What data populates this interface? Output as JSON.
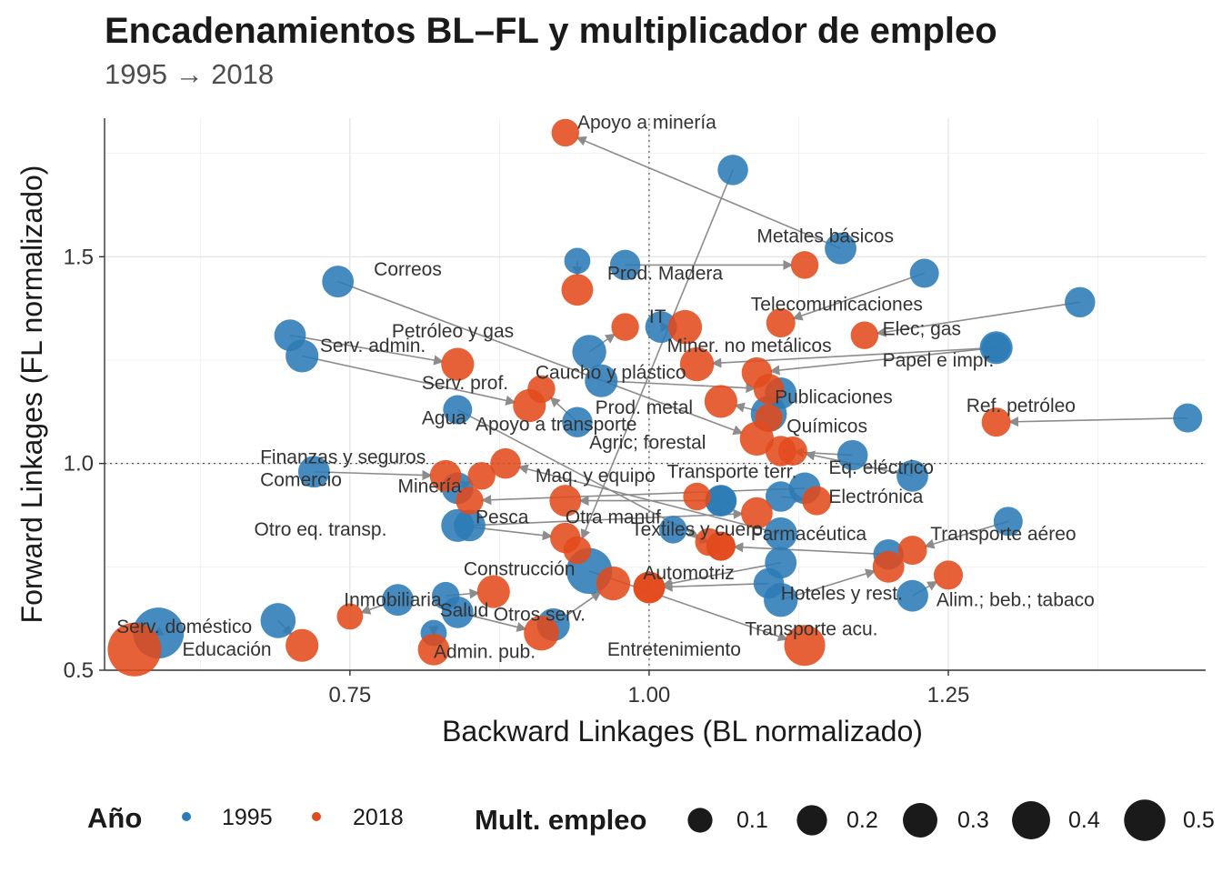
{
  "title": "Encadenamientos BL–FL y multiplicador de empleo",
  "subtitle": "1995 → 2018",
  "chart_data": {
    "type": "scatter",
    "title": "Encadenamientos BL–FL y multiplicador de empleo",
    "subtitle": "1995 → 2018",
    "xlabel": "Backward Linkages (BL normalizado)",
    "ylabel": "Forward Linkages (FL normalizado)",
    "xlim": [
      0.545,
      1.465
    ],
    "ylim": [
      0.5,
      1.835
    ],
    "x_ticks": [
      0.75,
      1.0,
      1.25
    ],
    "x_tick_labels": [
      "0.75",
      "1.00",
      "1.25"
    ],
    "y_ticks": [
      0.5,
      1.0,
      1.5
    ],
    "y_tick_labels": [
      "0.5",
      "1.0",
      "1.5"
    ],
    "reference_lines": {
      "x": 1.0,
      "y": 1.0
    },
    "grid": true,
    "legend_position": "bottom",
    "colors": {
      "1995": "#2c7bb6",
      "2018": "#e34a1d"
    },
    "legend": {
      "color_title": "Año",
      "color_entries": [
        "1995",
        "2018"
      ],
      "size_title": "Mult. empleo",
      "size_entries": [
        0.1,
        0.2,
        0.3,
        0.4,
        0.5
      ],
      "size_labels": [
        "0.1",
        "0.2",
        "0.3",
        "0.4",
        "0.5"
      ]
    },
    "series": [
      {
        "name": "1995",
        "points": [
          {
            "sector": "Apoyo a minería",
            "x": 1.16,
            "y": 1.52,
            "size": 0.1
          },
          {
            "sector": "Correos",
            "x": 0.94,
            "y": 1.49,
            "size": 0.06
          },
          {
            "sector": "Metales básicos",
            "x": 0.98,
            "y": 1.48,
            "size": 0.09
          },
          {
            "sector": "Prod. Madera",
            "x": 1.01,
            "y": 1.33,
            "size": 0.1
          },
          {
            "sector": "Telecomunicaciones",
            "x": 1.23,
            "y": 1.46,
            "size": 0.08
          },
          {
            "sector": "IT",
            "x": 0.95,
            "y": 1.27,
            "size": 0.12
          },
          {
            "sector": "Elec; gas",
            "x": 1.36,
            "y": 1.39,
            "size": 0.09
          },
          {
            "sector": "Petróleo y gas",
            "x": 1.07,
            "y": 1.71,
            "size": 0.09
          },
          {
            "sector": "Serv. admin.",
            "x": 0.7,
            "y": 1.31,
            "size": 0.1
          },
          {
            "sector": "Miner. no metálicos",
            "x": 1.29,
            "y": 1.28,
            "size": 0.11
          },
          {
            "sector": "Papel e impr.",
            "x": 1.29,
            "y": 1.28,
            "size": 0.08
          },
          {
            "sector": "Serv. prof.",
            "x": 0.71,
            "y": 1.26,
            "size": 0.11
          },
          {
            "sector": "Caucho y plástico",
            "x": 0.96,
            "y": 1.2,
            "size": 0.11
          },
          {
            "sector": "Publicaciones",
            "x": 1.11,
            "y": 1.17,
            "size": 0.1
          },
          {
            "sector": "Ref. petróleo",
            "x": 1.45,
            "y": 1.11,
            "size": 0.08
          },
          {
            "sector": "Prod. metal",
            "x": 1.1,
            "y": 1.12,
            "size": 0.14
          },
          {
            "sector": "Agua",
            "x": 0.84,
            "y": 1.13,
            "size": 0.08
          },
          {
            "sector": "Apoyo a transporte",
            "x": 0.94,
            "y": 1.1,
            "size": 0.09
          },
          {
            "sector": "Agric; forestal",
            "x": 0.74,
            "y": 1.44,
            "size": 0.1
          },
          {
            "sector": "Químicos",
            "x": 1.17,
            "y": 1.02,
            "size": 0.09
          },
          {
            "sector": "Finanzas y seguros",
            "x": 0.84,
            "y": 0.94,
            "size": 0.1
          },
          {
            "sector": "Comercio",
            "x": 0.72,
            "y": 0.98,
            "size": 0.1
          },
          {
            "sector": "Eq. eléctrico",
            "x": 1.22,
            "y": 0.97,
            "size": 0.1
          },
          {
            "sector": "Minería",
            "x": 1.13,
            "y": 0.94,
            "size": 0.1
          },
          {
            "sector": "Maq. y equipo",
            "x": 1.06,
            "y": 0.91,
            "size": 0.1
          },
          {
            "sector": "Transporte terr.",
            "x": 1.06,
            "y": 0.91,
            "size": 0.09
          },
          {
            "sector": "Electrónica",
            "x": 1.11,
            "y": 0.92,
            "size": 0.09
          },
          {
            "sector": "Pesca",
            "x": 0.85,
            "y": 0.85,
            "size": 0.1
          },
          {
            "sector": "Otra manuf.",
            "x": 1.11,
            "y": 0.83,
            "size": 0.11
          },
          {
            "sector": "Otro eq. transp.",
            "x": 0.84,
            "y": 0.85,
            "size": 0.11
          },
          {
            "sector": "Textiles y cuero",
            "x": 1.02,
            "y": 0.84,
            "size": 0.07
          },
          {
            "sector": "Farmacéutica",
            "x": 1.2,
            "y": 0.78,
            "size": 0.09
          },
          {
            "sector": "Transporte aéreo",
            "x": 1.3,
            "y": 0.86,
            "size": 0.08
          },
          {
            "sector": "Construcción",
            "x": 0.95,
            "y": 0.74,
            "size": 0.25
          },
          {
            "sector": "Automotriz",
            "x": 1.11,
            "y": 0.76,
            "size": 0.1
          },
          {
            "sector": "Hoteles y rest.",
            "x": 1.11,
            "y": 0.67,
            "size": 0.12
          },
          {
            "sector": "Alim.; beb.; tabaco",
            "x": 1.22,
            "y": 0.68,
            "size": 0.1
          },
          {
            "sector": "Inmobiliaria",
            "x": 0.79,
            "y": 0.67,
            "size": 0.1
          },
          {
            "sector": "Salud",
            "x": 0.83,
            "y": 0.68,
            "size": 0.07
          },
          {
            "sector": "Otros serv.",
            "x": 0.92,
            "y": 0.61,
            "size": 0.11
          },
          {
            "sector": "Entretenimiento",
            "x": 1.1,
            "y": 0.71,
            "size": 0.09
          },
          {
            "sector": "Transporte acu.",
            "x": 0.84,
            "y": 0.64,
            "size": 0.1
          },
          {
            "sector": "Serv. doméstico",
            "x": 0.59,
            "y": 0.59,
            "size": 0.32
          },
          {
            "sector": "Educación",
            "x": 0.69,
            "y": 0.62,
            "size": 0.13
          },
          {
            "sector": "Admin. pub.",
            "x": 0.82,
            "y": 0.59,
            "size": 0.06
          }
        ]
      },
      {
        "name": "2018",
        "points": [
          {
            "sector": "Apoyo a minería",
            "x": 0.93,
            "y": 1.8,
            "size": 0.07
          },
          {
            "sector": "Correos",
            "x": 0.94,
            "y": 1.42,
            "size": 0.1
          },
          {
            "sector": "Metales básicos",
            "x": 1.13,
            "y": 1.48,
            "size": 0.07
          },
          {
            "sector": "Prod. Madera",
            "x": 1.03,
            "y": 1.33,
            "size": 0.12
          },
          {
            "sector": "Telecomunicaciones",
            "x": 1.11,
            "y": 1.34,
            "size": 0.08
          },
          {
            "sector": "IT",
            "x": 0.98,
            "y": 1.33,
            "size": 0.07
          },
          {
            "sector": "Elec; gas",
            "x": 1.18,
            "y": 1.31,
            "size": 0.07
          },
          {
            "sector": "Petróleo y gas",
            "x": 0.94,
            "y": 0.79,
            "size": 0.07
          },
          {
            "sector": "Serv. admin.",
            "x": 0.84,
            "y": 1.24,
            "size": 0.11
          },
          {
            "sector": "Miner. no metálicos",
            "x": 1.04,
            "y": 1.24,
            "size": 0.12
          },
          {
            "sector": "Papel e impr.",
            "x": 1.09,
            "y": 1.22,
            "size": 0.09
          },
          {
            "sector": "Serv. prof.",
            "x": 0.9,
            "y": 1.14,
            "size": 0.11
          },
          {
            "sector": "Caucho y plástico",
            "x": 1.1,
            "y": 1.18,
            "size": 0.09
          },
          {
            "sector": "Publicaciones",
            "x": 1.1,
            "y": 1.11,
            "size": 0.07
          },
          {
            "sector": "Ref. petróleo",
            "x": 1.29,
            "y": 1.1,
            "size": 0.08
          },
          {
            "sector": "Prod. metal",
            "x": 1.06,
            "y": 1.15,
            "size": 0.11
          },
          {
            "sector": "Agua",
            "x": 1.05,
            "y": 0.81,
            "size": 0.07
          },
          {
            "sector": "Apoyo a transporte",
            "x": 0.91,
            "y": 1.18,
            "size": 0.07
          },
          {
            "sector": "Agric; forestal",
            "x": 1.09,
            "y": 1.06,
            "size": 0.12
          },
          {
            "sector": "Químicos",
            "x": 1.11,
            "y": 1.03,
            "size": 0.09
          },
          {
            "sector": "Finanzas y seguros",
            "x": 0.86,
            "y": 0.97,
            "size": 0.07
          },
          {
            "sector": "Comercio",
            "x": 0.83,
            "y": 0.97,
            "size": 0.1
          },
          {
            "sector": "Eq. eléctrico",
            "x": 1.12,
            "y": 1.03,
            "size": 0.08
          },
          {
            "sector": "Minería",
            "x": 0.85,
            "y": 0.91,
            "size": 0.07
          },
          {
            "sector": "Maq. y equipo",
            "x": 0.93,
            "y": 0.91,
            "size": 0.1
          },
          {
            "sector": "Transporte terr.",
            "x": 1.04,
            "y": 0.92,
            "size": 0.07
          },
          {
            "sector": "Electrónica",
            "x": 1.14,
            "y": 0.91,
            "size": 0.08
          },
          {
            "sector": "Pesca",
            "x": 1.09,
            "y": 0.88,
            "size": 0.1
          },
          {
            "sector": "Otra manuf.",
            "x": 0.88,
            "y": 1.0,
            "size": 0.09
          },
          {
            "sector": "Otro eq. transp.",
            "x": 0.93,
            "y": 0.82,
            "size": 0.09
          },
          {
            "sector": "Textiles y cuero",
            "x": 1.06,
            "y": 0.8,
            "size": 0.08
          },
          {
            "sector": "Farmacéutica",
            "x": 1.06,
            "y": 0.8,
            "size": 0.08
          },
          {
            "sector": "Transporte aéreo",
            "x": 1.22,
            "y": 0.79,
            "size": 0.08
          },
          {
            "sector": "Construcción",
            "x": 1.13,
            "y": 0.56,
            "size": 0.19
          },
          {
            "sector": "Automotriz",
            "x": 1.0,
            "y": 0.7,
            "size": 0.1
          },
          {
            "sector": "Hoteles y rest.",
            "x": 1.2,
            "y": 0.75,
            "size": 0.1
          },
          {
            "sector": "Alim.; beb.; tabaco",
            "x": 1.25,
            "y": 0.73,
            "size": 0.08
          },
          {
            "sector": "Inmobiliaria",
            "x": 0.75,
            "y": 0.63,
            "size": 0.06
          },
          {
            "sector": "Salud",
            "x": 0.87,
            "y": 0.69,
            "size": 0.11
          },
          {
            "sector": "Otros serv.",
            "x": 0.97,
            "y": 0.71,
            "size": 0.12
          },
          {
            "sector": "Entretenimiento",
            "x": 1.0,
            "y": 0.7,
            "size": 0.1
          },
          {
            "sector": "Transporte acu.",
            "x": 0.91,
            "y": 0.59,
            "size": 0.13
          },
          {
            "sector": "Serv. doméstico",
            "x": 0.57,
            "y": 0.55,
            "size": 0.36
          },
          {
            "sector": "Educación",
            "x": 0.71,
            "y": 0.56,
            "size": 0.11
          },
          {
            "sector": "Admin. pub.",
            "x": 0.82,
            "y": 0.55,
            "size": 0.1
          }
        ]
      }
    ],
    "labels": [
      {
        "text": "Apoyo a minería",
        "x": 0.94,
        "y": 1.81
      },
      {
        "text": "Metales básicos",
        "x": 1.09,
        "y": 1.535
      },
      {
        "text": "Correos",
        "x": 0.77,
        "y": 1.455
      },
      {
        "text": "Prod. Madera",
        "x": 0.965,
        "y": 1.445
      },
      {
        "text": "Telecomunicaciones",
        "x": 1.085,
        "y": 1.37
      },
      {
        "text": "IT",
        "x": 1.0,
        "y": 1.34
      },
      {
        "text": "Elec; gas",
        "x": 1.195,
        "y": 1.31
      },
      {
        "text": "Petróleo y gas",
        "x": 0.785,
        "y": 1.305
      },
      {
        "text": "Miner. no metálicos",
        "x": 1.015,
        "y": 1.27
      },
      {
        "text": "Serv. admin.",
        "x": 0.725,
        "y": 1.27
      },
      {
        "text": "Papel e impr.",
        "x": 1.195,
        "y": 1.235
      },
      {
        "text": "Caucho y plástico",
        "x": 0.905,
        "y": 1.205
      },
      {
        "text": "Serv. prof.",
        "x": 0.81,
        "y": 1.18
      },
      {
        "text": "Publicaciones",
        "x": 1.105,
        "y": 1.145
      },
      {
        "text": "Ref. petróleo",
        "x": 1.265,
        "y": 1.125
      },
      {
        "text": "Prod. metal",
        "x": 0.955,
        "y": 1.12
      },
      {
        "text": "Agua",
        "x": 0.81,
        "y": 1.095
      },
      {
        "text": "Apoyo a transporte",
        "x": 0.855,
        "y": 1.08
      },
      {
        "text": "Agric; forestal",
        "x": 0.95,
        "y": 1.035
      },
      {
        "text": "Químicos",
        "x": 1.115,
        "y": 1.075
      },
      {
        "text": "Finanzas y seguros",
        "x": 0.675,
        "y": 1.0
      },
      {
        "text": "Eq. eléctrico",
        "x": 1.15,
        "y": 0.975
      },
      {
        "text": "Maq. y equipo",
        "x": 0.905,
        "y": 0.955
      },
      {
        "text": "Transporte terr.",
        "x": 1.015,
        "y": 0.965
      },
      {
        "text": "Comercio",
        "x": 0.675,
        "y": 0.945
      },
      {
        "text": "Minería",
        "x": 0.79,
        "y": 0.93
      },
      {
        "text": "Electrónica",
        "x": 1.15,
        "y": 0.905
      },
      {
        "text": "Pesca",
        "x": 0.855,
        "y": 0.855
      },
      {
        "text": "Otra manuf.",
        "x": 0.93,
        "y": 0.855
      },
      {
        "text": "Otro eq. transp.",
        "x": 0.67,
        "y": 0.825
      },
      {
        "text": "Textiles y cuero",
        "x": 0.985,
        "y": 0.825
      },
      {
        "text": "Farmacéutica",
        "x": 1.085,
        "y": 0.815
      },
      {
        "text": "Transporte aéreo",
        "x": 1.235,
        "y": 0.815
      },
      {
        "text": "Construcción",
        "x": 0.845,
        "y": 0.73
      },
      {
        "text": "Automotriz",
        "x": 0.995,
        "y": 0.72
      },
      {
        "text": "Hoteles y rest.",
        "x": 1.11,
        "y": 0.67
      },
      {
        "text": "Alim.; beb.; tabaco",
        "x": 1.24,
        "y": 0.655
      },
      {
        "text": "Inmobiliaria",
        "x": 0.745,
        "y": 0.655
      },
      {
        "text": "Salud",
        "x": 0.825,
        "y": 0.63
      },
      {
        "text": "Otros serv.",
        "x": 0.87,
        "y": 0.62
      },
      {
        "text": "Serv. doméstico",
        "x": 0.555,
        "y": 0.59
      },
      {
        "text": "Transporte acu.",
        "x": 1.08,
        "y": 0.585
      },
      {
        "text": "Entretenimiento",
        "x": 0.965,
        "y": 0.535
      },
      {
        "text": "Educación",
        "x": 0.61,
        "y": 0.535
      },
      {
        "text": "Admin. pub.",
        "x": 0.82,
        "y": 0.53
      }
    ]
  }
}
